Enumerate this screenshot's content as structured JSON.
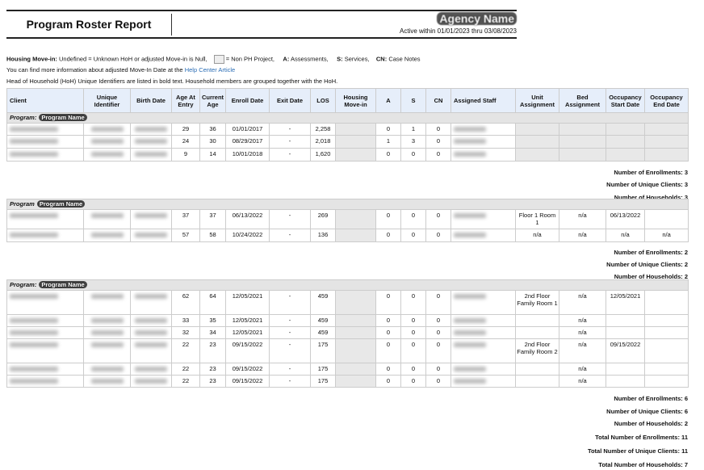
{
  "header": {
    "title": "Program Roster Report",
    "agency": "Agency Name",
    "active_range": "Active within 01/01/2023 thru 03/08/2023"
  },
  "legend": {
    "housing_label": "Housing Move-in:",
    "housing_text": "Undefined = Unknown HoH or adjusted Move-in is Null,",
    "nonph": "= Non PH Project,",
    "a_key": "A:",
    "a_val": "Assessments,",
    "s_key": "S:",
    "s_val": "Services,",
    "cn_key": "CN:",
    "cn_val": "Case Notes",
    "info_text": "You can find more information about adjusted Move-In Date at the",
    "info_link": "Help Center Article",
    "hoh_note": "Head of Household (HoH) Unique Identifiers are listed in bold text. Household members are grouped together with the HoH."
  },
  "columns": [
    "Client",
    "Unique Identifier",
    "Birth Date",
    "Age At Entry",
    "Current Age",
    "Enroll Date",
    "Exit Date",
    "LOS",
    "Housing Move-in",
    "A",
    "S",
    "CN",
    "Assigned Staff",
    "Unit Assignment",
    "Bed Assignment",
    "Occupancy Start Date",
    "Occupancy End Date"
  ],
  "programs": [
    {
      "label": "Program:",
      "name": "Program Name",
      "non_ph": true,
      "rows": [
        {
          "age": "29",
          "cur": "36",
          "enroll": "01/01/2017",
          "exit": "-",
          "los": "2,258",
          "a": "0",
          "s": "1",
          "cn": "0"
        },
        {
          "age": "24",
          "cur": "30",
          "enroll": "08/29/2017",
          "exit": "-",
          "los": "2,018",
          "a": "1",
          "s": "3",
          "cn": "0"
        },
        {
          "age": "9",
          "cur": "14",
          "enroll": "10/01/2018",
          "exit": "-",
          "los": "1,620",
          "a": "0",
          "s": "0",
          "cn": "0"
        }
      ],
      "summary": [
        "Number of Enrollments: 3",
        "Number of Unique Clients: 3",
        "Number of Households: 3"
      ]
    },
    {
      "label": "Program",
      "name": "Program Name",
      "non_ph": false,
      "rows": [
        {
          "age": "37",
          "cur": "37",
          "enroll": "06/13/2022",
          "exit": "-",
          "los": "269",
          "a": "0",
          "s": "0",
          "cn": "0",
          "unit": "Floor 1 Room 1",
          "bed": "n/a",
          "occ_start": "06/13/2022",
          "occ_end": ""
        },
        {
          "age": "57",
          "cur": "58",
          "enroll": "10/24/2022",
          "exit": "-",
          "los": "136",
          "a": "0",
          "s": "0",
          "cn": "0",
          "unit": "n/a",
          "bed": "n/a",
          "occ_start": "n/a",
          "occ_end": "n/a"
        }
      ],
      "summary": [
        "Number of Enrollments: 2",
        "Number of Unique Clients: 2",
        "Number of Households: 2"
      ]
    },
    {
      "label": "Program:",
      "name": "Program Name",
      "non_ph": false,
      "rows": [
        {
          "age": "62",
          "cur": "64",
          "enroll": "12/05/2021",
          "exit": "-",
          "los": "459",
          "a": "0",
          "s": "0",
          "cn": "0",
          "unit": "2nd Floor Family Room 1",
          "bed": "n/a",
          "occ_start": "12/05/2021",
          "occ_end": ""
        },
        {
          "age": "33",
          "cur": "35",
          "enroll": "12/05/2021",
          "exit": "-",
          "los": "459",
          "a": "0",
          "s": "0",
          "cn": "0",
          "unit": "",
          "bed": "n/a",
          "occ_start": "",
          "occ_end": ""
        },
        {
          "age": "32",
          "cur": "34",
          "enroll": "12/05/2021",
          "exit": "-",
          "los": "459",
          "a": "0",
          "s": "0",
          "cn": "0",
          "unit": "",
          "bed": "n/a",
          "occ_start": "",
          "occ_end": ""
        },
        {
          "age": "22",
          "cur": "23",
          "enroll": "09/15/2022",
          "exit": "-",
          "los": "175",
          "a": "0",
          "s": "0",
          "cn": "0",
          "unit": "2nd Floor Family Room 2",
          "bed": "n/a",
          "occ_start": "09/15/2022",
          "occ_end": ""
        },
        {
          "age": "22",
          "cur": "23",
          "enroll": "09/15/2022",
          "exit": "-",
          "los": "175",
          "a": "0",
          "s": "0",
          "cn": "0",
          "unit": "",
          "bed": "n/a",
          "occ_start": "",
          "occ_end": ""
        },
        {
          "age": "22",
          "cur": "23",
          "enroll": "09/15/2022",
          "exit": "-",
          "los": "175",
          "a": "0",
          "s": "0",
          "cn": "0",
          "unit": "",
          "bed": "n/a",
          "occ_start": "",
          "occ_end": ""
        }
      ],
      "summary": [
        "Number of Enrollments: 6",
        "Number of Unique Clients: 6",
        "Number of Households: 2"
      ]
    }
  ],
  "totals": [
    "Total Number of Enrollments: 11",
    "Total Number of Unique Clients: 11",
    "Total Number of Households: 7"
  ]
}
